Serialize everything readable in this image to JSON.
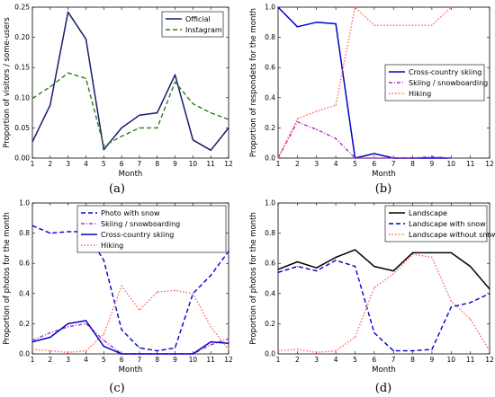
{
  "chart_data": [
    {
      "type": "line",
      "panel": "(a)",
      "xlabel": "Month",
      "ylabel": "Proportion of visitors / some-users",
      "xlim": [
        1,
        12
      ],
      "ylim": [
        0,
        0.25
      ],
      "xticks": [
        1,
        2,
        3,
        4,
        5,
        6,
        7,
        8,
        9,
        10,
        11,
        12
      ],
      "yticks": [
        0.0,
        0.05,
        0.1,
        0.15,
        0.2,
        0.25
      ],
      "ytick_labels": [
        "0.00",
        "0.05",
        "0.10",
        "0.15",
        "0.20",
        "0.25"
      ],
      "legend_position": "top-right",
      "x": [
        1,
        2,
        3,
        4,
        5,
        6,
        7,
        8,
        9,
        10,
        11,
        12
      ],
      "series": [
        {
          "name": "Official",
          "color": "#1a1a6e",
          "style": "solid",
          "values": [
            0.027,
            0.088,
            0.242,
            0.197,
            0.014,
            0.05,
            0.071,
            0.075,
            0.138,
            0.03,
            0.013,
            0.05
          ]
        },
        {
          "name": "Instagram",
          "color": "#2e7d1f",
          "style": "dashed",
          "values": [
            0.099,
            0.118,
            0.141,
            0.132,
            0.02,
            0.036,
            0.05,
            0.05,
            0.126,
            0.09,
            0.075,
            0.064
          ]
        }
      ]
    },
    {
      "type": "line",
      "panel": "(b)",
      "xlabel": "Month",
      "ylabel": "Proportion of respondets for the month",
      "xlim": [
        1,
        12
      ],
      "ylim": [
        0,
        1.0
      ],
      "xticks": [
        1,
        2,
        3,
        4,
        5,
        6,
        7,
        8,
        9,
        10,
        11,
        12
      ],
      "yticks": [
        0.0,
        0.2,
        0.4,
        0.6,
        0.8,
        1.0
      ],
      "ytick_labels": [
        "0.0",
        "0.2",
        "0.4",
        "0.6",
        "0.8",
        "1.0"
      ],
      "legend_position": "center-right",
      "x": [
        1,
        2,
        3,
        4,
        5,
        6,
        7,
        8,
        9,
        10,
        11,
        12
      ],
      "series": [
        {
          "name": "Cross-country skiing",
          "color": "#0000cc",
          "style": "solid",
          "values": [
            1.0,
            0.87,
            0.9,
            0.89,
            0.0,
            0.03,
            0.0,
            0.0,
            0.0,
            0.0,
            null,
            null
          ]
        },
        {
          "name": "Skiing / snowboarding",
          "color": "#b030c0",
          "style": "dashdot",
          "values": [
            0.0,
            0.24,
            0.19,
            0.13,
            0.0,
            0.0,
            0.0,
            0.0,
            0.01,
            0.0,
            null,
            null
          ]
        },
        {
          "name": "Hiking",
          "color": "#ff6666",
          "style": "dotted",
          "values": [
            0.0,
            0.26,
            0.31,
            0.35,
            1.0,
            0.88,
            0.88,
            0.88,
            0.88,
            1.0,
            null,
            null
          ]
        }
      ]
    },
    {
      "type": "line",
      "panel": "(c)",
      "xlabel": "Month",
      "ylabel": "Proportion of photos for the month",
      "xlim": [
        1,
        12
      ],
      "ylim": [
        0,
        1.0
      ],
      "xticks": [
        1,
        2,
        3,
        4,
        5,
        6,
        7,
        8,
        9,
        10,
        11,
        12
      ],
      "yticks": [
        0.0,
        0.2,
        0.4,
        0.6,
        0.8,
        1.0
      ],
      "ytick_labels": [
        "0.0",
        "0.2",
        "0.4",
        "0.6",
        "0.8",
        "1.0"
      ],
      "legend_position": "top-right",
      "x": [
        1,
        2,
        3,
        4,
        5,
        6,
        7,
        8,
        9,
        10,
        11,
        12
      ],
      "series": [
        {
          "name": "Photo with snow",
          "color": "#0000cc",
          "style": "dashed",
          "values": [
            0.85,
            0.8,
            0.81,
            0.81,
            0.62,
            0.16,
            0.04,
            0.02,
            0.04,
            0.4,
            0.52,
            0.68
          ]
        },
        {
          "name": "Skiing / snowboarding",
          "color": "#b030c0",
          "style": "dashdot",
          "values": [
            0.09,
            0.14,
            0.18,
            0.2,
            0.09,
            0.0,
            0.0,
            0.0,
            0.0,
            0.0,
            0.06,
            0.1
          ]
        },
        {
          "name": "Cross-country skiing",
          "color": "#0000cc",
          "style": "solid",
          "values": [
            0.08,
            0.11,
            0.2,
            0.22,
            0.05,
            0.0,
            0.0,
            0.0,
            0.0,
            0.0,
            0.08,
            0.07
          ]
        },
        {
          "name": "Hiking",
          "color": "#ff6666",
          "style": "dotted",
          "values": [
            0.03,
            0.02,
            0.01,
            0.02,
            0.13,
            0.45,
            0.29,
            0.41,
            0.42,
            0.4,
            0.18,
            0.03
          ]
        }
      ]
    },
    {
      "type": "line",
      "panel": "(d)",
      "xlabel": "Month",
      "ylabel": "Proportion of photos for the month",
      "xlim": [
        1,
        12
      ],
      "ylim": [
        0,
        1.0
      ],
      "xticks": [
        1,
        2,
        3,
        4,
        5,
        6,
        7,
        8,
        9,
        10,
        11,
        12
      ],
      "yticks": [
        0.0,
        0.2,
        0.4,
        0.6,
        0.8,
        1.0
      ],
      "ytick_labels": [
        "0.0",
        "0.2",
        "0.4",
        "0.6",
        "0.8",
        "1.0"
      ],
      "legend_position": "top-right",
      "x": [
        1,
        2,
        3,
        4,
        5,
        6,
        7,
        8,
        9,
        10,
        11,
        12
      ],
      "series": [
        {
          "name": "Landscape",
          "color": "#000000",
          "style": "solid",
          "values": [
            0.56,
            0.61,
            0.57,
            0.64,
            0.69,
            0.58,
            0.55,
            0.67,
            0.67,
            0.67,
            0.58,
            0.43
          ]
        },
        {
          "name": "Landscape with snow",
          "color": "#0000cc",
          "style": "dashed",
          "values": [
            0.54,
            0.58,
            0.55,
            0.62,
            0.58,
            0.14,
            0.02,
            0.02,
            0.03,
            0.31,
            0.34,
            0.4
          ]
        },
        {
          "name": "Landscape without snow",
          "color": "#ff6666",
          "style": "dotted",
          "values": [
            0.02,
            0.03,
            0.01,
            0.02,
            0.11,
            0.44,
            0.53,
            0.66,
            0.64,
            0.35,
            0.23,
            0.02
          ]
        }
      ]
    }
  ]
}
